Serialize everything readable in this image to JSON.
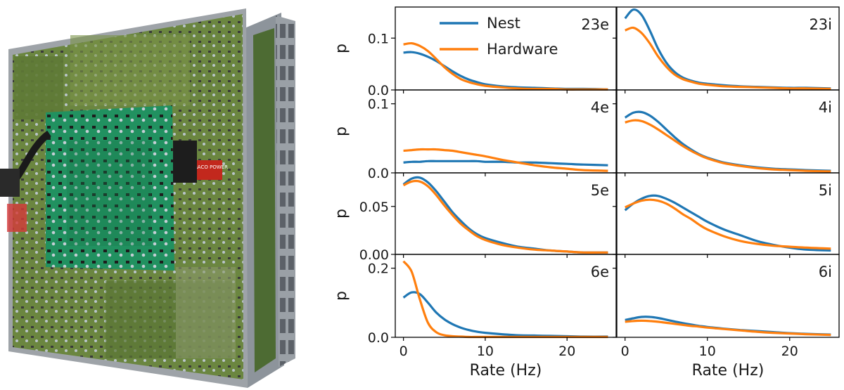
{
  "photo": {
    "panel_label": "TRACO POWER",
    "colors": {
      "frame": "#8f959b",
      "board": "#6f8a3f",
      "board_dark": "#526d2d",
      "main_board": "#1f8b5a",
      "chip": "#2a2a2a",
      "cap": "#c9d3da"
    }
  },
  "chart_data": {
    "type": "line",
    "layout": "grid 4 rows x 2 columns, shared x axis",
    "xlabel": "Rate (Hz)",
    "ylabel": "p",
    "xlim": [
      -1,
      26
    ],
    "xticks": [
      0,
      10,
      20
    ],
    "legend": {
      "placement": "top-left of first panel",
      "entries": [
        "Nest",
        "Hardware"
      ]
    },
    "colors": {
      "Nest": "#1f77b4",
      "Hardware": "#ff7f0e"
    },
    "x": [
      0,
      1,
      2,
      3,
      4,
      5,
      6,
      7,
      8,
      9,
      10,
      12,
      14,
      16,
      18,
      20,
      22,
      25
    ],
    "panels": [
      {
        "label": "23e",
        "ylim": [
          0,
          0.16
        ],
        "yticks": [
          0.0,
          0.1
        ],
        "yticklabels": [
          "0.0",
          "0.1"
        ],
        "series": [
          {
            "name": "Nest",
            "values": [
              0.072,
              0.073,
              0.07,
              0.064,
              0.056,
              0.046,
              0.036,
              0.027,
              0.02,
              0.015,
              0.011,
              0.007,
              0.005,
              0.004,
              0.003,
              0.002,
              0.002,
              0.001
            ]
          },
          {
            "name": "Hardware",
            "values": [
              0.088,
              0.09,
              0.085,
              0.075,
              0.06,
              0.044,
              0.031,
              0.021,
              0.015,
              0.011,
              0.008,
              0.005,
              0.003,
              0.002,
              0.002,
              0.001,
              0.001,
              0.001
            ]
          }
        ]
      },
      {
        "label": "23i",
        "ylim": [
          0,
          0.16
        ],
        "yticks": [
          0.0,
          0.1
        ],
        "yticklabels": [
          "",
          ""
        ],
        "series": [
          {
            "name": "Nest",
            "values": [
              0.138,
              0.155,
              0.145,
              0.115,
              0.08,
              0.053,
              0.035,
              0.024,
              0.018,
              0.014,
              0.012,
              0.009,
              0.007,
              0.006,
              0.005,
              0.004,
              0.004,
              0.003
            ]
          },
          {
            "name": "Hardware",
            "values": [
              0.115,
              0.12,
              0.11,
              0.09,
              0.065,
              0.045,
              0.03,
              0.021,
              0.016,
              0.012,
              0.01,
              0.007,
              0.006,
              0.005,
              0.004,
              0.003,
              0.003,
              0.002
            ]
          }
        ]
      },
      {
        "label": "4e",
        "ylim": [
          0,
          0.12
        ],
        "yticks": [
          0.0,
          0.1
        ],
        "yticklabels": [
          "0.0",
          "0.1"
        ],
        "series": [
          {
            "name": "Nest",
            "values": [
              0.015,
              0.016,
              0.016,
              0.017,
              0.017,
              0.017,
              0.017,
              0.017,
              0.017,
              0.017,
              0.016,
              0.016,
              0.015,
              0.015,
              0.014,
              0.013,
              0.012,
              0.011
            ]
          },
          {
            "name": "Hardware",
            "values": [
              0.032,
              0.033,
              0.034,
              0.034,
              0.034,
              0.033,
              0.032,
              0.03,
              0.028,
              0.026,
              0.024,
              0.019,
              0.015,
              0.011,
              0.008,
              0.006,
              0.004,
              0.003
            ]
          }
        ]
      },
      {
        "label": "4i",
        "ylim": [
          0,
          0.12
        ],
        "yticks": [
          0.0,
          0.1
        ],
        "yticklabels": [
          "",
          ""
        ],
        "series": [
          {
            "name": "Nest",
            "values": [
              0.08,
              0.087,
              0.088,
              0.083,
              0.074,
              0.063,
              0.052,
              0.042,
              0.034,
              0.027,
              0.022,
              0.015,
              0.011,
              0.008,
              0.006,
              0.005,
              0.004,
              0.003
            ]
          },
          {
            "name": "Hardware",
            "values": [
              0.073,
              0.076,
              0.075,
              0.07,
              0.063,
              0.055,
              0.047,
              0.039,
              0.032,
              0.026,
              0.021,
              0.014,
              0.01,
              0.007,
              0.005,
              0.004,
              0.003,
              0.002
            ]
          }
        ]
      },
      {
        "label": "5e",
        "ylim": [
          0,
          0.085
        ],
        "yticks": [
          0.0,
          0.05
        ],
        "yticklabels": [
          "0.00",
          "0.05"
        ],
        "series": [
          {
            "name": "Nest",
            "values": [
              0.073,
              0.079,
              0.08,
              0.075,
              0.066,
              0.055,
              0.044,
              0.035,
              0.027,
              0.021,
              0.017,
              0.012,
              0.008,
              0.006,
              0.004,
              0.003,
              0.002,
              0.002
            ]
          },
          {
            "name": "Hardware",
            "values": [
              0.072,
              0.076,
              0.076,
              0.071,
              0.062,
              0.051,
              0.041,
              0.032,
              0.025,
              0.019,
              0.015,
              0.01,
              0.007,
              0.005,
              0.004,
              0.003,
              0.002,
              0.002
            ]
          }
        ]
      },
      {
        "label": "5i",
        "ylim": [
          0,
          0.085
        ],
        "yticks": [
          0.0,
          0.05
        ],
        "yticklabels": [
          "",
          ""
        ],
        "series": [
          {
            "name": "Nest",
            "values": [
              0.046,
              0.053,
              0.058,
              0.061,
              0.061,
              0.058,
              0.054,
              0.049,
              0.044,
              0.039,
              0.034,
              0.026,
              0.02,
              0.014,
              0.01,
              0.007,
              0.005,
              0.004
            ]
          },
          {
            "name": "Hardware",
            "values": [
              0.049,
              0.053,
              0.056,
              0.057,
              0.056,
              0.053,
              0.048,
              0.042,
              0.037,
              0.031,
              0.026,
              0.019,
              0.014,
              0.011,
              0.009,
              0.008,
              0.007,
              0.006
            ]
          }
        ]
      },
      {
        "label": "6e",
        "ylim": [
          0,
          0.24
        ],
        "yticks": [
          0.0,
          0.2
        ],
        "yticklabels": [
          "0.0",
          "0.2"
        ],
        "series": [
          {
            "name": "Nest",
            "values": [
              0.115,
              0.13,
              0.125,
              0.1,
              0.072,
              0.052,
              0.038,
              0.028,
              0.021,
              0.016,
              0.013,
              0.009,
              0.006,
              0.005,
              0.004,
              0.003,
              0.002,
              0.002
            ]
          },
          {
            "name": "Hardware",
            "values": [
              0.22,
              0.19,
              0.11,
              0.042,
              0.015,
              0.006,
              0.003,
              0.002,
              0.001,
              0.001,
              0.001,
              0.001,
              0.001,
              0.001,
              0.001,
              0.001,
              0.001,
              0.001
            ]
          }
        ]
      },
      {
        "label": "6i",
        "ylim": [
          0,
          0.24
        ],
        "yticks": [
          0.0,
          0.2
        ],
        "yticklabels": [
          "",
          ""
        ],
        "series": [
          {
            "name": "Nest",
            "values": [
              0.05,
              0.055,
              0.059,
              0.059,
              0.056,
              0.051,
              0.046,
              0.041,
              0.037,
              0.033,
              0.03,
              0.025,
              0.021,
              0.018,
              0.015,
              0.012,
              0.01,
              0.008
            ]
          },
          {
            "name": "Hardware",
            "values": [
              0.045,
              0.047,
              0.048,
              0.047,
              0.045,
              0.042,
              0.039,
              0.036,
              0.033,
              0.031,
              0.028,
              0.024,
              0.02,
              0.016,
              0.013,
              0.011,
              0.009,
              0.007
            ]
          }
        ]
      }
    ]
  }
}
